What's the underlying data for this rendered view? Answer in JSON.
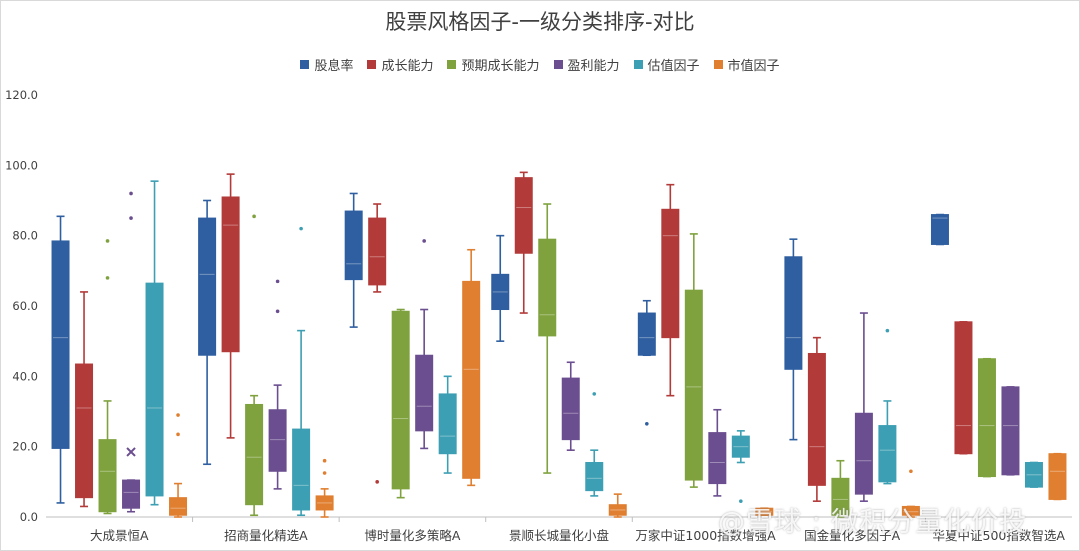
{
  "chart_data": {
    "type": "box",
    "title": "股票风格因子-一级分类排序-对比",
    "ylim": [
      0,
      120
    ],
    "yticks": [
      "0.0",
      "20.0",
      "40.0",
      "60.0",
      "80.0",
      "100.0",
      "120.0"
    ],
    "categories": [
      "大成景恒A",
      "招商量化精选A",
      "博时量化多策略A",
      "景顺长城量化小盘",
      "万家中证1000指数增强A",
      "国金量化多因子A",
      "华夏中证500指数智选A"
    ],
    "series": [
      {
        "name": "股息率",
        "color": "#2f5fa0",
        "boxes": [
          {
            "min": 4,
            "q1": 19.5,
            "median": 51,
            "q3": 78.5,
            "max": 85.5,
            "outliers": []
          },
          {
            "min": 15,
            "q1": 46,
            "median": 69,
            "q3": 85,
            "max": 90,
            "outliers": []
          },
          {
            "min": 54,
            "q1": 67.5,
            "median": 72,
            "q3": 87,
            "max": 92,
            "outliers": []
          },
          {
            "min": 50,
            "q1": 59,
            "median": 64,
            "q3": 69,
            "max": 80,
            "outliers": []
          },
          {
            "min": 46,
            "q1": 46,
            "median": 51,
            "q3": 58,
            "max": 61.5,
            "outliers": [
              26.5
            ]
          },
          {
            "min": 22,
            "q1": 42,
            "median": 51,
            "q3": 74,
            "max": 79,
            "outliers": []
          },
          {
            "min": 77.5,
            "q1": 77.5,
            "median": 85,
            "q3": 86,
            "max": 86,
            "outliers": []
          }
        ]
      },
      {
        "name": "成长能力",
        "color": "#b23a39",
        "boxes": [
          {
            "min": 3,
            "q1": 5.5,
            "median": 31,
            "q3": 43.5,
            "max": 64,
            "outliers": []
          },
          {
            "min": 22.5,
            "q1": 47,
            "median": 83,
            "q3": 91,
            "max": 97.5,
            "outliers": []
          },
          {
            "min": 64,
            "q1": 66,
            "median": 74,
            "q3": 85,
            "max": 89,
            "outliers": [
              10
            ]
          },
          {
            "min": 58,
            "q1": 75,
            "median": 88,
            "q3": 96.5,
            "max": 98,
            "outliers": []
          },
          {
            "min": 34.5,
            "q1": 51,
            "median": 80,
            "q3": 87.5,
            "max": 94.5,
            "outliers": []
          },
          {
            "min": 4.5,
            "q1": 9,
            "median": 20,
            "q3": 46.5,
            "max": 51,
            "outliers": []
          },
          {
            "min": 18,
            "q1": 18,
            "median": 26,
            "q3": 55.5,
            "max": 55.5,
            "outliers": []
          }
        ]
      },
      {
        "name": "预期成长能力",
        "color": "#7fa23e",
        "boxes": [
          {
            "min": 1,
            "q1": 1.5,
            "median": 13,
            "q3": 22,
            "max": 33,
            "outliers": [
              68,
              78.5
            ]
          },
          {
            "min": 0.5,
            "q1": 3.5,
            "median": 17,
            "q3": 32,
            "max": 34.5,
            "outliers": [
              85.5
            ]
          },
          {
            "min": 5.5,
            "q1": 8,
            "median": 28,
            "q3": 58.5,
            "max": 59,
            "outliers": []
          },
          {
            "min": 12.5,
            "q1": 51.5,
            "median": 57.5,
            "q3": 79,
            "max": 89,
            "outliers": []
          },
          {
            "min": 8.5,
            "q1": 10.5,
            "median": 37,
            "q3": 64.5,
            "max": 80.5,
            "outliers": []
          },
          {
            "min": 0,
            "q1": 0.5,
            "median": 5,
            "q3": 11,
            "max": 16,
            "outliers": []
          },
          {
            "min": 11.5,
            "q1": 11.5,
            "median": 26,
            "q3": 45,
            "max": 45,
            "outliers": []
          }
        ]
      },
      {
        "name": "盈利能力",
        "color": "#6b4e8f",
        "boxes": [
          {
            "min": 1.5,
            "q1": 2.5,
            "median": 7,
            "q3": 10.5,
            "max": 10.5,
            "outliers": [
              85,
              92
            ],
            "mean": 18.5
          },
          {
            "min": 8,
            "q1": 13,
            "median": 22,
            "q3": 30.5,
            "max": 37.5,
            "outliers": [
              58.5,
              67
            ]
          },
          {
            "min": 19.5,
            "q1": 24.5,
            "median": 31.5,
            "q3": 46,
            "max": 59,
            "outliers": [
              78.5
            ]
          },
          {
            "min": 19,
            "q1": 22,
            "median": 29.5,
            "q3": 39.5,
            "max": 44,
            "outliers": []
          },
          {
            "min": 6,
            "q1": 9.5,
            "median": 15.5,
            "q3": 24,
            "max": 30.5,
            "outliers": []
          },
          {
            "min": 4.5,
            "q1": 6.5,
            "median": 16,
            "q3": 29.5,
            "max": 58,
            "outliers": []
          },
          {
            "min": 12,
            "q1": 12,
            "median": 26,
            "q3": 37,
            "max": 37,
            "outliers": []
          }
        ]
      },
      {
        "name": "估值因子",
        "color": "#3d9fb3",
        "boxes": [
          {
            "min": 3.5,
            "q1": 6,
            "median": 31,
            "q3": 66.5,
            "max": 95.5,
            "outliers": []
          },
          {
            "min": 0.5,
            "q1": 2,
            "median": 9,
            "q3": 25,
            "max": 53,
            "outliers": [
              82
            ]
          },
          {
            "min": 12.5,
            "q1": 18,
            "median": 23,
            "q3": 35,
            "max": 40,
            "outliers": []
          },
          {
            "min": 6,
            "q1": 7.5,
            "median": 11,
            "q3": 15.5,
            "max": 19,
            "outliers": [
              35
            ]
          },
          {
            "min": 15.5,
            "q1": 17,
            "median": 20,
            "q3": 23,
            "max": 24.5,
            "outliers": [
              4.5
            ]
          },
          {
            "min": 9.5,
            "q1": 10,
            "median": 19,
            "q3": 26,
            "max": 33,
            "outliers": [
              53
            ]
          },
          {
            "min": 8.5,
            "q1": 8.5,
            "median": 12,
            "q3": 15.5,
            "max": 15.5,
            "outliers": []
          }
        ]
      },
      {
        "name": "市值因子",
        "color": "#e07f30",
        "boxes": [
          {
            "min": 0,
            "q1": 0.5,
            "median": 2.5,
            "q3": 5.5,
            "max": 9.5,
            "outliers": [
              23.5,
              29
            ]
          },
          {
            "min": 0,
            "q1": 2,
            "median": 4,
            "q3": 6,
            "max": 8,
            "outliers": [
              12.5,
              16
            ]
          },
          {
            "min": 9,
            "q1": 11,
            "median": 42,
            "q3": 67,
            "max": 76,
            "outliers": []
          },
          {
            "min": 0,
            "q1": 0.5,
            "median": 2,
            "q3": 3.5,
            "max": 6.5,
            "outliers": []
          },
          {
            "min": 0.5,
            "q1": 0.5,
            "median": 1.5,
            "q3": 2.5,
            "max": 2.5,
            "outliers": []
          },
          {
            "min": 0,
            "q1": 0.5,
            "median": 1.5,
            "q3": 3,
            "max": 3,
            "outliers": [
              13
            ]
          },
          {
            "min": 5,
            "q1": 5,
            "median": 13,
            "q3": 18,
            "max": 18,
            "outliers": []
          }
        ]
      }
    ]
  },
  "watermark": "@雪球 : 微积分量化价投"
}
